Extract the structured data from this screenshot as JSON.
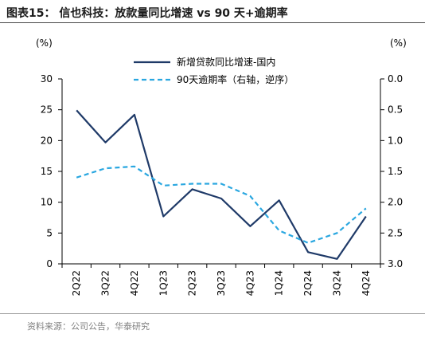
{
  "figure": {
    "title": "图表15：  信也科技：放款量同比增速 vs 90 天+逾期率",
    "source": "资料来源：公司公告，华泰研究"
  },
  "chart_data": {
    "type": "line",
    "categories": [
      "2Q22",
      "3Q22",
      "4Q22",
      "1Q23",
      "2Q23",
      "3Q23",
      "4Q23",
      "1Q24",
      "2Q24",
      "3Q24",
      "4Q24"
    ],
    "series": [
      {
        "name": "新增贷款同比增速-国内",
        "axis": "left",
        "color": "#1f3a68",
        "style": "solid",
        "values": [
          24.9,
          19.7,
          24.2,
          7.7,
          12.1,
          10.6,
          6.1,
          10.3,
          1.9,
          0.8,
          7.7
        ]
      },
      {
        "name": "90天逾期率（右轴，逆序）",
        "axis": "right",
        "color": "#2aa7e0",
        "style": "dashed",
        "values": [
          1.6,
          1.45,
          1.42,
          1.73,
          1.7,
          1.7,
          1.9,
          2.46,
          2.66,
          2.5,
          2.1
        ]
      }
    ],
    "y_left": {
      "unit": "(%)",
      "ylim": [
        0,
        30
      ],
      "ticks": [
        "0",
        "5",
        "10",
        "15",
        "20",
        "25",
        "30"
      ]
    },
    "y_right": {
      "unit": "(%)",
      "ylim": [
        0.0,
        3.0
      ],
      "inverted": true,
      "ticks": [
        "0.0",
        "0.5",
        "1.0",
        "1.5",
        "2.0",
        "2.5",
        "3.0"
      ]
    },
    "grid": false,
    "legend_position": "top-center"
  }
}
